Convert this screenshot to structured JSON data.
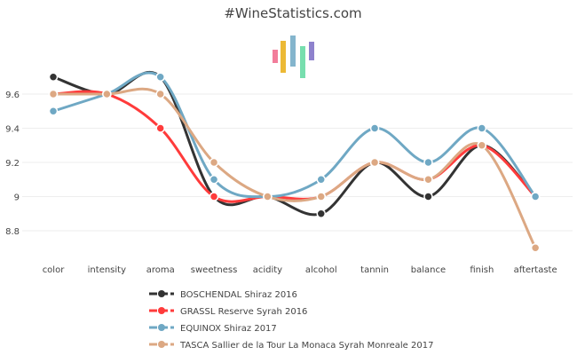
{
  "chart_data": {
    "type": "line",
    "title": "#WineStatistics.com",
    "categories": [
      "color",
      "intensity",
      "aroma",
      "sweetness",
      "acidity",
      "alcohol",
      "tannin",
      "balance",
      "finish",
      "aftertaste"
    ],
    "y_ticks": [
      "9.6",
      "9.4",
      "9.2",
      "9",
      "8.8"
    ],
    "y_tick_values": [
      9.6,
      9.4,
      9.2,
      9.0,
      8.8
    ],
    "ylim": [
      8.65,
      9.95
    ],
    "grid": "horizontal",
    "legend_position": "bottom",
    "series": [
      {
        "name": "BOSCHENDAL Shiraz 2016",
        "color": "#333333",
        "values": [
          9.7,
          9.6,
          9.7,
          9.0,
          9.0,
          8.9,
          9.2,
          9.0,
          9.3,
          9.0
        ]
      },
      {
        "name": "GRASSL Reserve Syrah 2016",
        "color": "#ff3b3b",
        "values": [
          9.6,
          9.6,
          9.4,
          9.0,
          9.0,
          9.0,
          9.2,
          9.1,
          9.3,
          9.0
        ]
      },
      {
        "name": "EQUINOX Shiraz 2017",
        "color": "#6fa8c4",
        "values": [
          9.5,
          9.6,
          9.7,
          9.1,
          9.0,
          9.1,
          9.4,
          9.2,
          9.4,
          9.0
        ]
      },
      {
        "name": "TASCA Sallier de la Tour La Monaca Syrah Monreale 2017",
        "color": "#dca883",
        "values": [
          9.6,
          9.6,
          9.6,
          9.2,
          9.0,
          9.0,
          9.2,
          9.1,
          9.3,
          8.7
        ]
      }
    ],
    "logo_colors": [
      "#f0668a",
      "#e9ad12",
      "#6fa8c4",
      "#5fd8a0",
      "#7a6cc4"
    ]
  }
}
